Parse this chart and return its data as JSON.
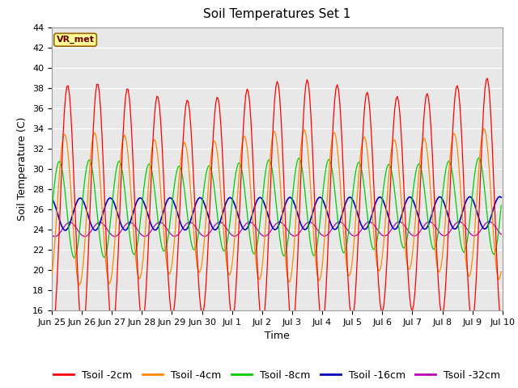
{
  "title": "Soil Temperatures Set 1",
  "xlabel": "Time",
  "ylabel": "Soil Temperature (C)",
  "ylim": [
    16,
    44
  ],
  "yticks": [
    16,
    18,
    20,
    22,
    24,
    26,
    28,
    30,
    32,
    34,
    36,
    38,
    40,
    42,
    44
  ],
  "x_tick_labels": [
    "Jun 25",
    "Jun 26",
    "Jun 27",
    "Jun 28",
    "Jun 29",
    "Jun 30",
    "Jul 1",
    "Jul 2",
    "Jul 3",
    "Jul 4",
    "Jul 5",
    "Jul 6",
    "Jul 7",
    "Jul 8",
    "Jul 9",
    "Jul 10"
  ],
  "annotation_text": "VR_met",
  "annotation_bg": "#ffff99",
  "annotation_border": "#996600",
  "series": [
    {
      "label": "Tsoil -2cm",
      "color": "#ff0000"
    },
    {
      "label": "Tsoil -4cm",
      "color": "#ff8800"
    },
    {
      "label": "Tsoil -8cm",
      "color": "#00cc00"
    },
    {
      "label": "Tsoil -16cm",
      "color": "#0000bb"
    },
    {
      "label": "Tsoil -32cm",
      "color": "#bb00bb"
    }
  ],
  "grid_color": "#ffffff",
  "title_fontsize": 11,
  "axis_label_fontsize": 9,
  "tick_fontsize": 8,
  "legend_fontsize": 9
}
